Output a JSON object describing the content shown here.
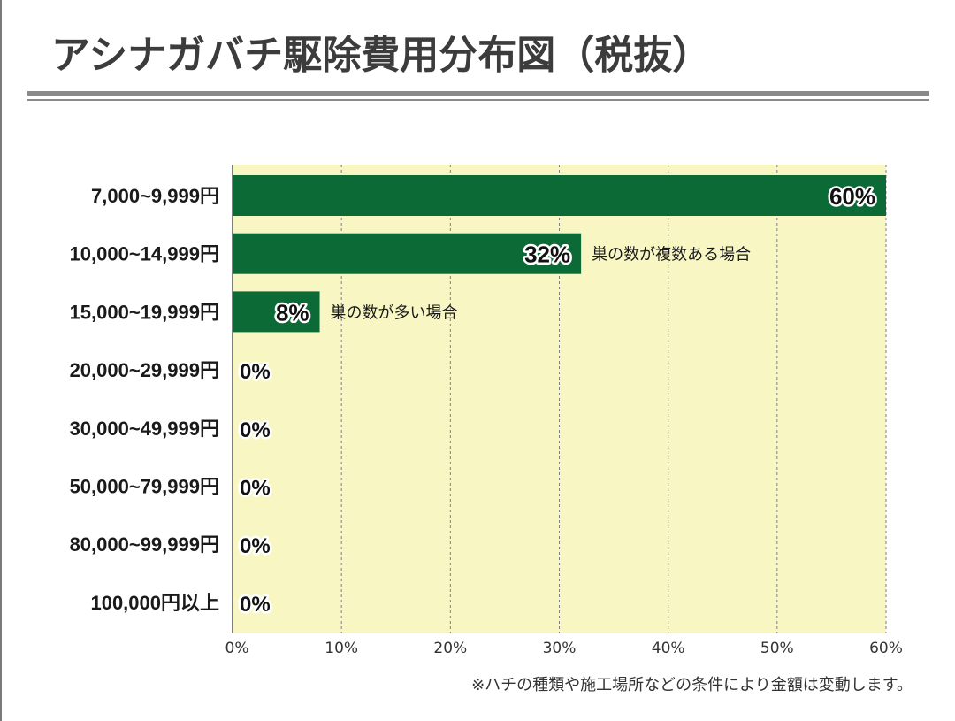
{
  "header": {
    "title": "アシナガバチ駆除費用分布図（税抜）"
  },
  "footnote": "※ハチの種類や施工場所などの条件により金額は変動します。",
  "colors": {
    "plot_background": "#f8f7c4",
    "bar": "#0b6a35",
    "grid": "#7f7f7f"
  },
  "chart_data": {
    "type": "bar",
    "orientation": "horizontal",
    "title": "アシナガバチ駆除費用分布図（税抜）",
    "categories": [
      "7,000~9,999円",
      "10,000~14,999円",
      "15,000~19,999円",
      "20,000~29,999円",
      "30,000~49,999円",
      "50,000~79,999円",
      "80,000~99,999円",
      "100,000円以上"
    ],
    "values": [
      60,
      32,
      8,
      0,
      0,
      0,
      0,
      0
    ],
    "value_labels": [
      "60%",
      "32%",
      "8%",
      "0%",
      "0%",
      "0%",
      "0%",
      "0%"
    ],
    "annotations": [
      {
        "category_index": 1,
        "text": "巣の数が複数ある場合"
      },
      {
        "category_index": 2,
        "text": "巣の数が多い場合"
      }
    ],
    "x_ticks": [
      0,
      10,
      20,
      30,
      40,
      50,
      60
    ],
    "x_tick_labels": [
      "0%",
      "10%",
      "20%",
      "30%",
      "40%",
      "50%",
      "60%"
    ],
    "xlim": [
      0,
      60
    ],
    "xlabel": "",
    "ylabel": "",
    "grid": "vertical dashed"
  }
}
